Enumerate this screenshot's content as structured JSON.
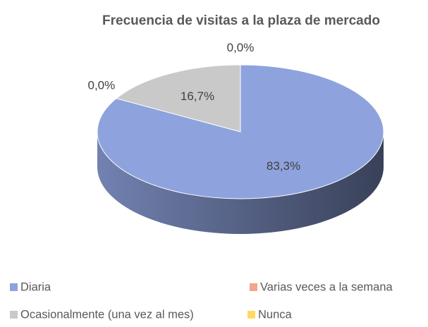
{
  "chart_data": {
    "type": "pie3d",
    "title": "Frecuencia de visitas a la plaza de mercado",
    "categories": [
      "Diaria",
      "Varias veces a la semana",
      "Ocasionalmente (una vez al mes)",
      "Nunca"
    ],
    "values": [
      83.3,
      0.0,
      16.7,
      0.0
    ],
    "value_labels": [
      "83,3%",
      "0,0%",
      "16,7%",
      "0,0%"
    ],
    "colors": [
      "#8ea2dd",
      "#f4a48a",
      "#c9c9c9",
      "#ffd966"
    ],
    "legend": "bottom"
  }
}
